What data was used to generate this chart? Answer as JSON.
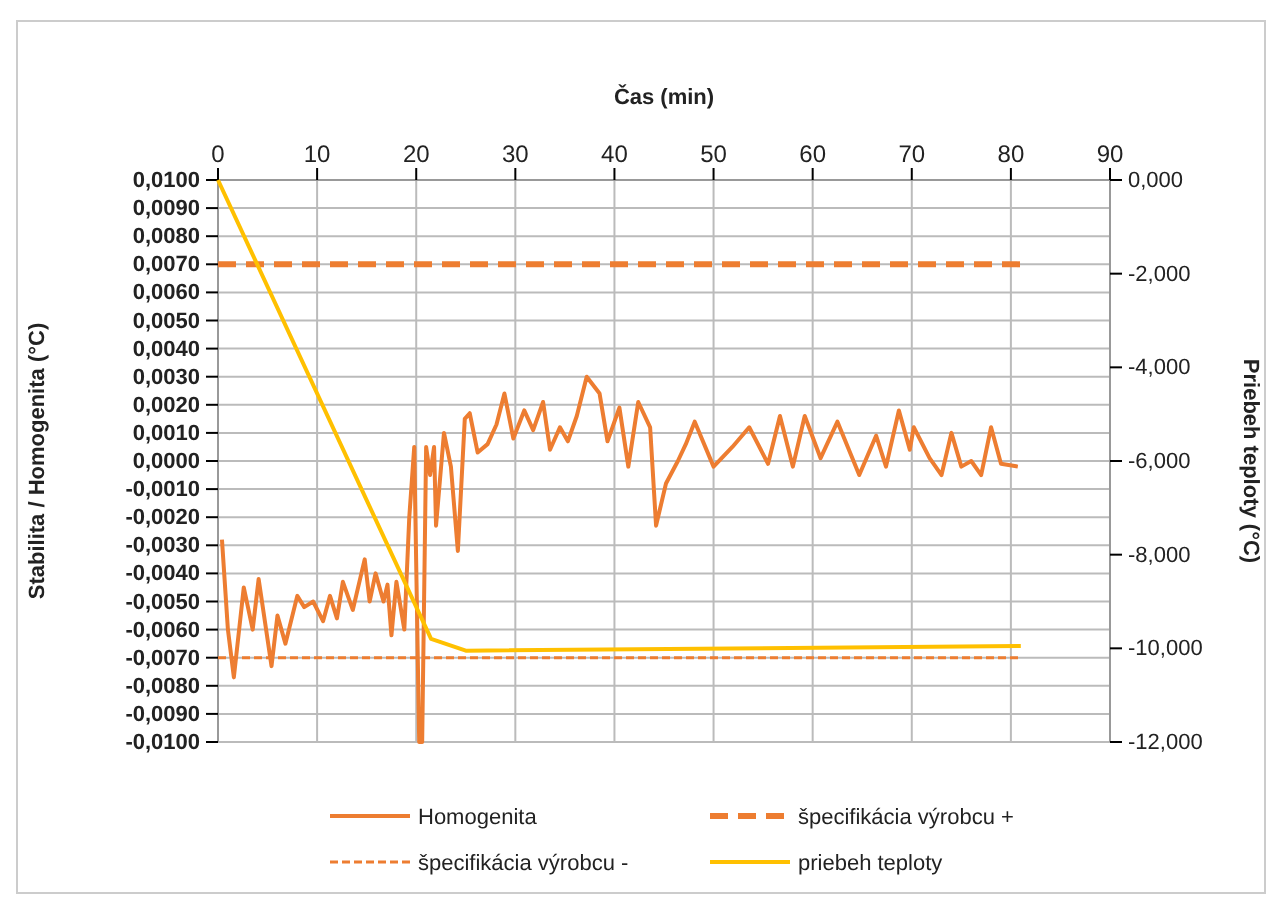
{
  "chart_data": {
    "type": "line",
    "xlabel": "Čas (min)",
    "ylabel": "Stabilita / Homogenita (°C)",
    "y2label": "Priebeh teploty (°C)",
    "xlim": [
      0,
      90
    ],
    "xticks": [
      0,
      10,
      20,
      30,
      40,
      50,
      60,
      70,
      80,
      90
    ],
    "ylim": [
      -0.01,
      0.01
    ],
    "yticks": [
      {
        "value": 0.01,
        "label": "0,0100"
      },
      {
        "value": 0.009,
        "label": "0,0090"
      },
      {
        "value": 0.008,
        "label": "0,0080"
      },
      {
        "value": 0.007,
        "label": "0,0070"
      },
      {
        "value": 0.006,
        "label": "0,0060"
      },
      {
        "value": 0.005,
        "label": "0,0050"
      },
      {
        "value": 0.004,
        "label": "0,0040"
      },
      {
        "value": 0.003,
        "label": "0,0030"
      },
      {
        "value": 0.002,
        "label": "0,0020"
      },
      {
        "value": 0.001,
        "label": "0,0010"
      },
      {
        "value": 0,
        "label": "0,0000"
      },
      {
        "value": -0.001,
        "label": "-0,0010"
      },
      {
        "value": -0.002,
        "label": "-0,0020"
      },
      {
        "value": -0.003,
        "label": "-0,0030"
      },
      {
        "value": -0.004,
        "label": "-0,0040"
      },
      {
        "value": -0.005,
        "label": "-0,0050"
      },
      {
        "value": -0.006,
        "label": "-0,0060"
      },
      {
        "value": -0.007,
        "label": "-0,0070"
      },
      {
        "value": -0.008,
        "label": "-0,0080"
      },
      {
        "value": -0.009,
        "label": "-0,0090"
      },
      {
        "value": -0.01,
        "label": "-0,0100"
      }
    ],
    "y2lim": [
      -12,
      0
    ],
    "y2ticks": [
      {
        "value": 0,
        "label": "0,000"
      },
      {
        "value": -2,
        "label": "-2,000"
      },
      {
        "value": -4,
        "label": "-4,000"
      },
      {
        "value": -6,
        "label": "-6,000"
      },
      {
        "value": -8,
        "label": "-8,000"
      },
      {
        "value": -10,
        "label": "-10,000"
      },
      {
        "value": -12,
        "label": "-12,000"
      }
    ],
    "grid": true,
    "legend": "bottom",
    "marker": "none",
    "series": [
      {
        "name": "Homogenita",
        "color": "#ed7d31",
        "line_style": "solid",
        "x": [
          0.4,
          1,
          1.6,
          2.6,
          3.5,
          4.1,
          5.4,
          6,
          6.8,
          8,
          8.7,
          9.6,
          10.6,
          11.3,
          12,
          12.6,
          13.6,
          14.8,
          15.3,
          15.9,
          16.7,
          17.1,
          17.5,
          18,
          18.8,
          19.3,
          19.8,
          20.3,
          20.6,
          21,
          21.4,
          21.8,
          22,
          22.8,
          23.5,
          24.2,
          24.9,
          25.4,
          26.2,
          27.2,
          28.1,
          28.9,
          29.8,
          30.9,
          31.8,
          32.8,
          33.5,
          34.5,
          35.3,
          36.2,
          37.2,
          38.5,
          39.3,
          40.5,
          41.4,
          42.4,
          43.6,
          44.2,
          45.2,
          46.4,
          47.2,
          48.1,
          50,
          51.9,
          53.6,
          55.5,
          56.7,
          58,
          59.2,
          60.8,
          62.5,
          64.7,
          66.4,
          67.4,
          68.7,
          69.8,
          70.2,
          71.8,
          73,
          74,
          75,
          76,
          77,
          78,
          79,
          80.7
        ],
        "values": [
          -0.0028,
          -0.006,
          -0.0077,
          -0.0045,
          -0.006,
          -0.0042,
          -0.0073,
          -0.0055,
          -0.0065,
          -0.0048,
          -0.0052,
          -0.005,
          -0.0057,
          -0.0048,
          -0.0056,
          -0.0043,
          -0.0053,
          -0.0035,
          -0.005,
          -0.004,
          -0.005,
          -0.0044,
          -0.0062,
          -0.0043,
          -0.006,
          -0.002,
          0.0005,
          -0.01,
          -0.01,
          0.0005,
          -0.0005,
          0.0005,
          -0.0023,
          0.001,
          -0.0002,
          -0.0032,
          0.0015,
          0.0017,
          0.0003,
          0.0006,
          0.0013,
          0.0024,
          0.0008,
          0.0018,
          0.0011,
          0.0021,
          0.0004,
          0.0012,
          0.0007,
          0.0016,
          0.003,
          0.0024,
          0.0007,
          0.0019,
          -0.0002,
          0.0021,
          0.0012,
          -0.0023,
          -0.0008,
          0,
          0.0006,
          0.0014,
          -0.0002,
          0.0005,
          0.0012,
          -0.0001,
          0.0016,
          -0.0002,
          0.0016,
          0.0001,
          0.0014,
          -0.0005,
          0.0009,
          -0.0002,
          0.0018,
          0.0004,
          0.0012,
          0.0001,
          -0.0005,
          0.001,
          -0.0002,
          0,
          -0.0005,
          0.0012,
          -0.0001,
          -0.0002
        ]
      },
      {
        "name": "špecifikácia výrobcu +",
        "color": "#ed7d31",
        "line_style": "dashed",
        "x": [
          0,
          81
        ],
        "values": [
          0.007,
          0.007
        ]
      },
      {
        "name": "špecifikácia výrobcu -",
        "color": "#ed7d31",
        "line_style": "dotted",
        "x": [
          0,
          81
        ],
        "values": [
          -0.007,
          -0.007
        ]
      },
      {
        "name": "priebeh teploty",
        "color": "#ffc000",
        "line_style": "solid",
        "axis": "y2",
        "x": [
          0,
          21.5,
          25,
          81
        ],
        "values": [
          0,
          -9.8,
          -10.05,
          -9.95
        ]
      }
    ]
  }
}
